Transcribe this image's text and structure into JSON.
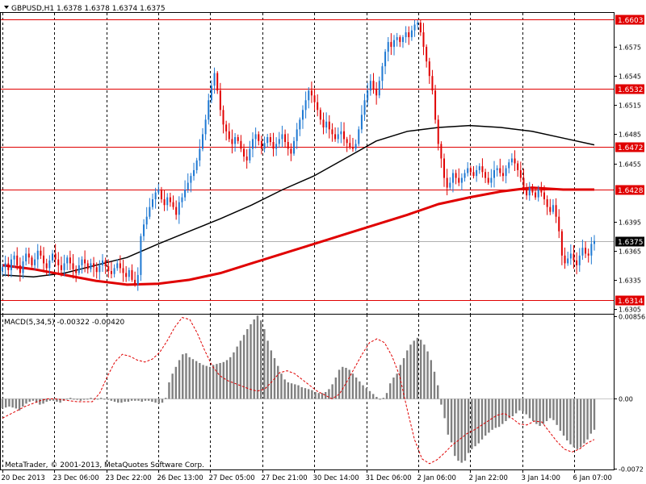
{
  "chart_data": [
    {
      "type": "candlestick",
      "title": "GBPUSD,H1 1.6378 1.6378 1.6374 1.6375",
      "symbol": "GBPUSD,H1",
      "ohlc_current": [
        1.6378,
        1.6378,
        1.6374,
        1.6375
      ],
      "ylim": [
        1.63,
        1.661
      ],
      "y_ticks": [
        "1.6575",
        "1.6545",
        "1.6515",
        "1.6485",
        "1.6455",
        "1.6395",
        "1.6365",
        "1.6335",
        "1.6305"
      ],
      "horizontal_levels": [
        {
          "value": 1.6603,
          "label": "1.6603"
        },
        {
          "value": 1.6532,
          "label": "1.6532"
        },
        {
          "value": 1.6472,
          "label": "1.6472"
        },
        {
          "value": 1.6428,
          "label": "1.6428"
        },
        {
          "value": 1.6314,
          "label": "1.6314"
        }
      ],
      "current_price": {
        "value": 1.6375,
        "label": "1.6375"
      },
      "x_labels": [
        "20 Dec 2013",
        "23 Dec 06:00",
        "23 Dec 22:00",
        "26 Dec 13:00",
        "27 Dec 05:00",
        "27 Dec 21:00",
        "30 Dec 14:00",
        "31 Dec 06:00",
        "2 Jan 06:00",
        "2 Jan 22:00",
        "3 Jan 14:00",
        "6 Jan 07:00"
      ],
      "close_series": [
        1.6348,
        1.6352,
        1.6345,
        1.6356,
        1.636,
        1.635,
        1.6342,
        1.6354,
        1.6362,
        1.6358,
        1.635,
        1.6356,
        1.6365,
        1.636,
        1.6352,
        1.6347,
        1.6355,
        1.6362,
        1.6356,
        1.635,
        1.6345,
        1.6352,
        1.6358,
        1.6352,
        1.6346,
        1.6342,
        1.635,
        1.6356,
        1.6352,
        1.6346,
        1.6352,
        1.6348,
        1.6343,
        1.635,
        1.6355,
        1.6349,
        1.6344,
        1.6341,
        1.6347,
        1.6352,
        1.6347,
        1.6342,
        1.6338,
        1.6345,
        1.6335,
        1.633,
        1.634,
        1.638,
        1.6392,
        1.64,
        1.641,
        1.6418,
        1.6425,
        1.6428,
        1.6418,
        1.6412,
        1.642,
        1.6415,
        1.641,
        1.6402,
        1.6415,
        1.642,
        1.6428,
        1.6435,
        1.6442,
        1.6448,
        1.6458,
        1.647,
        1.6485,
        1.65,
        1.652,
        1.6535,
        1.6548,
        1.653,
        1.651,
        1.6495,
        1.6488,
        1.648,
        1.6475,
        1.6482,
        1.6478,
        1.647,
        1.6462,
        1.6458,
        1.647,
        1.648,
        1.6485,
        1.6478,
        1.647,
        1.6476,
        1.6482,
        1.6477,
        1.647,
        1.6475,
        1.648,
        1.6485,
        1.6477,
        1.647,
        1.6465,
        1.6478,
        1.649,
        1.65,
        1.651,
        1.652,
        1.653,
        1.6525,
        1.6518,
        1.651,
        1.65,
        1.6492,
        1.6498,
        1.649,
        1.6485,
        1.648,
        1.6485,
        1.6488,
        1.648,
        1.6476,
        1.6472,
        1.647,
        1.6475,
        1.649,
        1.6505,
        1.652,
        1.653,
        1.654,
        1.6532,
        1.6525,
        1.654,
        1.6555,
        1.657,
        1.658,
        1.6575,
        1.6582,
        1.6585,
        1.658,
        1.6585,
        1.659,
        1.6585,
        1.6592,
        1.6598,
        1.66,
        1.659,
        1.6575,
        1.656,
        1.6545,
        1.653,
        1.65,
        1.6475,
        1.646,
        1.644,
        1.643,
        1.6435,
        1.6445,
        1.644,
        1.6435,
        1.644,
        1.6445,
        1.645,
        1.6446,
        1.6442,
        1.6448,
        1.6452,
        1.6446,
        1.644,
        1.6435,
        1.644,
        1.6448,
        1.645,
        1.6445,
        1.6442,
        1.645,
        1.6456,
        1.646,
        1.6455,
        1.6448,
        1.644,
        1.643,
        1.6422,
        1.643,
        1.6425,
        1.642,
        1.6428,
        1.6425,
        1.6418,
        1.641,
        1.6405,
        1.6412,
        1.64,
        1.6385,
        1.636,
        1.6352,
        1.6357,
        1.6362,
        1.6355,
        1.635,
        1.636,
        1.6368,
        1.6362,
        1.636,
        1.6372,
        1.6375
      ],
      "moving_averages": [
        {
          "color": "#000000",
          "values": [
            1.634,
            1.6338,
            1.6342,
            1.635,
            1.6358,
            1.6372,
            1.6385,
            1.6398,
            1.6412,
            1.6428,
            1.6442,
            1.646,
            1.6478,
            1.6488,
            1.6492,
            1.6494,
            1.6492,
            1.6488,
            1.6481,
            1.6474
          ]
        },
        {
          "color": "#e00000",
          "values": [
            1.635,
            1.6346,
            1.634,
            1.6334,
            1.633,
            1.6331,
            1.6335,
            1.6342,
            1.6352,
            1.6362,
            1.6372,
            1.6382,
            1.6392,
            1.6402,
            1.6413,
            1.642,
            1.6426,
            1.643,
            1.6428,
            1.6428
          ]
        }
      ]
    },
    {
      "type": "histogram",
      "title": "MACD(5,34,5) -0.00322 -0.00420",
      "indicator": "MACD(5,34,5)",
      "current_values": [
        -0.00322,
        -0.0042
      ],
      "ylim": [
        -0.0073,
        0.0087
      ],
      "y_ticks": [
        "0.00856",
        "0.00",
        "-0.0072"
      ],
      "histogram": [
        -0.001,
        -0.0009,
        -0.0008,
        -0.0009,
        -0.001,
        -0.0012,
        -0.0008,
        -0.0005,
        -0.0003,
        -0.0002,
        -0.0004,
        -0.0006,
        -0.0005,
        -0.0003,
        -0.0002,
        -0.0002,
        -0.0003,
        -0.0004,
        -0.0002,
        0.0,
        0.0001,
        0.0,
        -0.0001,
        -0.0002,
        -0.0001,
        0.0,
        0.0001,
        0.0,
        0.0,
        0.0001,
        0.0,
        -0.0001,
        -0.0002,
        -0.0003,
        -0.0004,
        -0.0004,
        -0.0003,
        -0.0003,
        -0.0002,
        -0.0002,
        -0.0002,
        -0.0003,
        -0.0002,
        -0.0002,
        -0.0003,
        -0.0004,
        -0.0005,
        -0.0004,
        0.0001,
        0.0017,
        0.0026,
        0.0033,
        0.004,
        0.0046,
        0.0047,
        0.0043,
        0.0041,
        0.0039,
        0.0037,
        0.0035,
        0.0034,
        0.0033,
        0.0035,
        0.0036,
        0.0037,
        0.0038,
        0.004,
        0.0043,
        0.0048,
        0.0054,
        0.006,
        0.0066,
        0.0072,
        0.0077,
        0.0082,
        0.0086,
        0.0081,
        0.0072,
        0.006,
        0.005,
        0.0042,
        0.0034,
        0.0026,
        0.002,
        0.0017,
        0.0016,
        0.0015,
        0.0014,
        0.0012,
        0.0011,
        0.001,
        0.0009,
        0.0007,
        0.0006,
        0.0006,
        0.0007,
        0.001,
        0.0015,
        0.0022,
        0.003,
        0.0033,
        0.0032,
        0.003,
        0.0026,
        0.0022,
        0.0018,
        0.0014,
        0.0011,
        0.0008,
        0.0005,
        0.0002,
        0.0,
        0.0001,
        0.0006,
        0.0016,
        0.0022,
        0.0026,
        0.0035,
        0.0042,
        0.005,
        0.0056,
        0.006,
        0.0063,
        0.0061,
        0.0056,
        0.0049,
        0.004,
        0.0028,
        0.0014,
        -0.0006,
        -0.002,
        -0.0037,
        -0.0045,
        -0.0059,
        -0.0064,
        -0.0066,
        -0.0064,
        -0.0056,
        -0.0052,
        -0.0049,
        -0.0046,
        -0.0042,
        -0.0038,
        -0.0035,
        -0.0032,
        -0.003,
        -0.0029,
        -0.0026,
        -0.0023,
        -0.002,
        -0.0018,
        -0.0015,
        -0.0012,
        -0.0013,
        -0.0016,
        -0.002,
        -0.0023,
        -0.0026,
        -0.0028,
        -0.0026,
        -0.0023,
        -0.002,
        -0.0022,
        -0.0027,
        -0.0033,
        -0.0038,
        -0.0043,
        -0.0047,
        -0.005,
        -0.0052,
        -0.005,
        -0.0046,
        -0.0042,
        -0.0036,
        -0.0032
      ],
      "signal": [
        -0.002,
        -0.0016,
        -0.0012,
        -0.0008,
        -0.0005,
        -0.0002,
        0.0,
        0.0,
        -0.0001,
        -0.0002,
        -0.0003,
        -0.0003,
        -0.0003,
        0.0006,
        0.0023,
        0.0038,
        0.0046,
        0.0044,
        0.004,
        0.0038,
        0.0041,
        0.0048,
        0.006,
        0.0074,
        0.0084,
        0.0082,
        0.0068,
        0.005,
        0.0034,
        0.0024,
        0.0019,
        0.0016,
        0.0013,
        0.001,
        0.0008,
        0.001,
        0.0018,
        0.0027,
        0.0029,
        0.0026,
        0.002,
        0.0014,
        0.0008,
        0.0004,
        0.0,
        0.0005,
        0.0018,
        0.0032,
        0.0046,
        0.0058,
        0.0062,
        0.0058,
        0.0044,
        0.0024,
        -0.001,
        -0.0042,
        -0.0062,
        -0.0067,
        -0.0063,
        -0.0056,
        -0.0048,
        -0.0042,
        -0.0036,
        -0.0032,
        -0.0027,
        -0.0022,
        -0.0017,
        -0.0015,
        -0.002,
        -0.0026,
        -0.0027,
        -0.0023,
        -0.0024,
        -0.0034,
        -0.0044,
        -0.0052,
        -0.0055,
        -0.0052,
        -0.0046,
        -0.0042
      ]
    }
  ],
  "footer": {
    "copyright": "MetaTrader, © 2001-2013, MetaQuotes Software Corp."
  },
  "colors": {
    "bull": "#1e78d2",
    "bear": "#e00000",
    "level": "#e00000",
    "grid": "#000000",
    "histogram": "#808080",
    "signal": "#e00000"
  }
}
